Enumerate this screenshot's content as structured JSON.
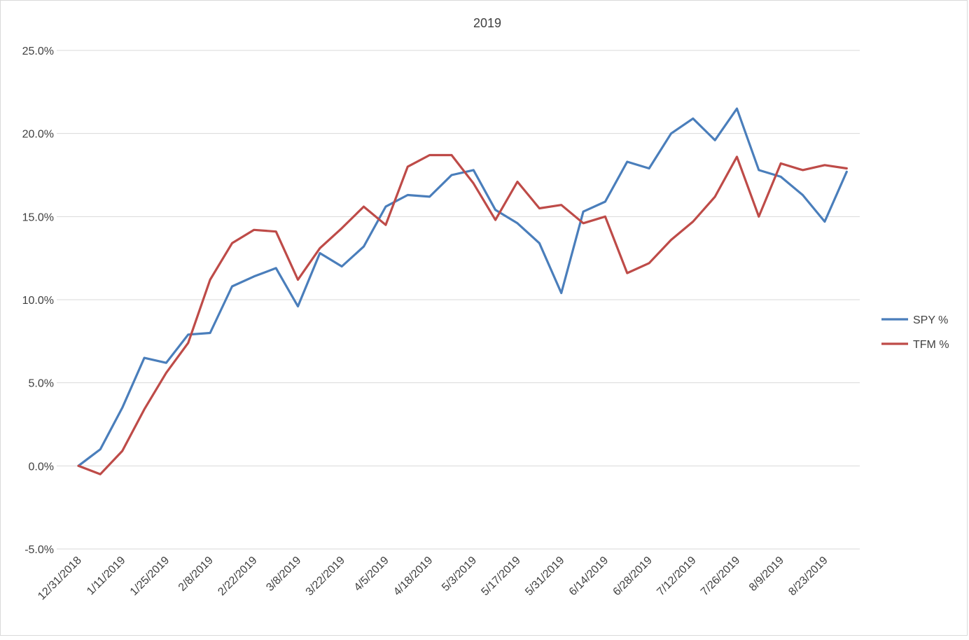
{
  "chart_data": {
    "type": "line",
    "title": "2019",
    "xlabel": "",
    "ylabel": "",
    "ylim": [
      -5.0,
      25.0
    ],
    "ytick_values": [
      -5.0,
      0.0,
      5.0,
      10.0,
      15.0,
      20.0,
      25.0
    ],
    "ytick_labels": [
      "-5.0%",
      "0.0%",
      "5.0%",
      "10.0%",
      "15.0%",
      "20.0%",
      "25.0%"
    ],
    "grid": "horizontal",
    "legend_position": "right",
    "categories": [
      "12/31/2018",
      "1/4/2019",
      "1/11/2019",
      "1/18/2019",
      "1/25/2019",
      "2/1/2019",
      "2/8/2019",
      "2/15/2019",
      "2/22/2019",
      "3/1/2019",
      "3/8/2019",
      "3/15/2019",
      "3/22/2019",
      "3/29/2019",
      "4/5/2019",
      "4/12/2019",
      "4/18/2019",
      "4/26/2019",
      "5/3/2019",
      "5/10/2019",
      "5/17/2019",
      "5/24/2019",
      "5/31/2019",
      "6/7/2019",
      "6/14/2019",
      "6/21/2019",
      "6/28/2019",
      "7/5/2019",
      "7/12/2019",
      "7/19/2019",
      "7/26/2019",
      "8/2/2019",
      "8/9/2019",
      "8/16/2019",
      "8/23/2019",
      "8/30/2019"
    ],
    "x_tick_labels": [
      "12/31/2018",
      "1/11/2019",
      "1/25/2019",
      "2/8/2019",
      "2/22/2019",
      "3/8/2019",
      "3/22/2019",
      "4/5/2019",
      "4/18/2019",
      "5/3/2019",
      "5/17/2019",
      "5/31/2019",
      "6/14/2019",
      "6/28/2019",
      "7/12/2019",
      "7/26/2019",
      "8/9/2019",
      "8/23/2019"
    ],
    "series": [
      {
        "name": "SPY %",
        "color": "#4a7ebb",
        "values": [
          0.0,
          1.0,
          3.5,
          6.5,
          6.2,
          7.9,
          8.0,
          10.8,
          11.4,
          11.9,
          9.6,
          12.8,
          12.0,
          13.2,
          15.6,
          16.3,
          16.2,
          17.5,
          17.8,
          15.4,
          14.6,
          13.4,
          10.4,
          15.3,
          15.9,
          18.3,
          17.9,
          20.0,
          20.9,
          19.6,
          21.5,
          17.8,
          17.4,
          16.3,
          14.7,
          17.7
        ]
      },
      {
        "name": "TFM %",
        "color": "#be4b48",
        "values": [
          0.0,
          -0.5,
          0.9,
          3.4,
          5.6,
          7.4,
          11.2,
          13.4,
          14.2,
          14.1,
          11.2,
          13.1,
          14.3,
          15.6,
          14.5,
          18.0,
          18.7,
          18.7,
          17.0,
          14.8,
          17.1,
          15.5,
          15.7,
          14.6,
          15.0,
          11.6,
          12.2,
          13.6,
          14.7,
          16.2,
          18.6,
          15.0,
          18.2,
          17.8,
          18.1,
          17.9
        ]
      }
    ]
  }
}
